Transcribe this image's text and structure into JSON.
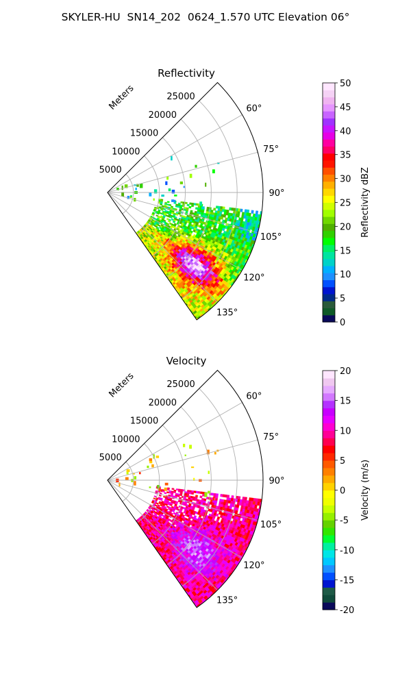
{
  "page_title": "SKYLER-HU  SN14_202  0624_1.570 UTC Elevation 06°",
  "colors": {
    "grid": "#b0b0b0",
    "frame": "#000000"
  },
  "chart_data": [
    {
      "type": "heatmap",
      "projection": "polar-sector",
      "title": "Reflectivity",
      "range_label": "Meters",
      "range_ticks": [
        5000,
        10000,
        15000,
        20000,
        25000
      ],
      "range_max": 30000,
      "azimuth_range": [
        45,
        145
      ],
      "azimuth_ticks": [
        "60°",
        "75°",
        "90°",
        "105°",
        "120°",
        "135°"
      ],
      "grid": true,
      "colorbar": {
        "label": "Reflectivity dBZ",
        "min": 0,
        "max": 50,
        "ticks": [
          0,
          5,
          10,
          15,
          20,
          25,
          30,
          35,
          40,
          45,
          50
        ],
        "colors": [
          "#0a0a5a",
          "#0f5a28",
          "#2a5a3a",
          "#002a8a",
          "#0014d0",
          "#0050ff",
          "#1e90ff",
          "#00b0ff",
          "#00d2c8",
          "#00e5a0",
          "#00f064",
          "#00ff00",
          "#30d000",
          "#50b000",
          "#70d800",
          "#a0ff00",
          "#d0ff00",
          "#ffff00",
          "#ffd800",
          "#ffb000",
          "#ff8000",
          "#ff5000",
          "#ff1400",
          "#ff0000",
          "#ff0064",
          "#ff00a0",
          "#e600e6",
          "#c814ff",
          "#a032ff",
          "#c864ff",
          "#e696ff",
          "#f0b4f0",
          "#f5d2f5",
          "#ffe6ff"
        ]
      },
      "echo_region": {
        "azimuth_start": 97,
        "azimuth_end": 145,
        "range_start_m": 9500,
        "range_end_m": 30000
      }
    },
    {
      "type": "heatmap",
      "projection": "polar-sector",
      "title": "Velocity",
      "range_label": "Meters",
      "range_ticks": [
        5000,
        10000,
        15000,
        20000,
        25000
      ],
      "range_max": 30000,
      "azimuth_range": [
        45,
        145
      ],
      "azimuth_ticks": [
        "60°",
        "75°",
        "90°",
        "105°",
        "120°",
        "135°"
      ],
      "grid": true,
      "colorbar": {
        "label": "Velocity (m/s)",
        "min": -20,
        "max": 20,
        "ticks": [
          -20,
          -15,
          -10,
          -5,
          0,
          5,
          10,
          15,
          20
        ],
        "colors": [
          "#0a0a5a",
          "#0f4a3a",
          "#1e5a46",
          "#0014d0",
          "#0050ff",
          "#1e90ff",
          "#00c8ff",
          "#00e6e6",
          "#00f0a0",
          "#00ff32",
          "#32e600",
          "#64d200",
          "#96f000",
          "#c8ff00",
          "#f0ff00",
          "#ffff00",
          "#ffd200",
          "#ffaa00",
          "#ff8000",
          "#ff5a00",
          "#ff2800",
          "#ff0000",
          "#ff0050",
          "#ff0096",
          "#ff00d2",
          "#e600ff",
          "#c800ff",
          "#b432ff",
          "#d278ff",
          "#e6aaff",
          "#f0c8f0",
          "#ffe6ff"
        ]
      },
      "echo_region": {
        "azimuth_start": 97,
        "azimuth_end": 145,
        "range_start_m": 9500,
        "range_end_m": 30000
      }
    }
  ]
}
